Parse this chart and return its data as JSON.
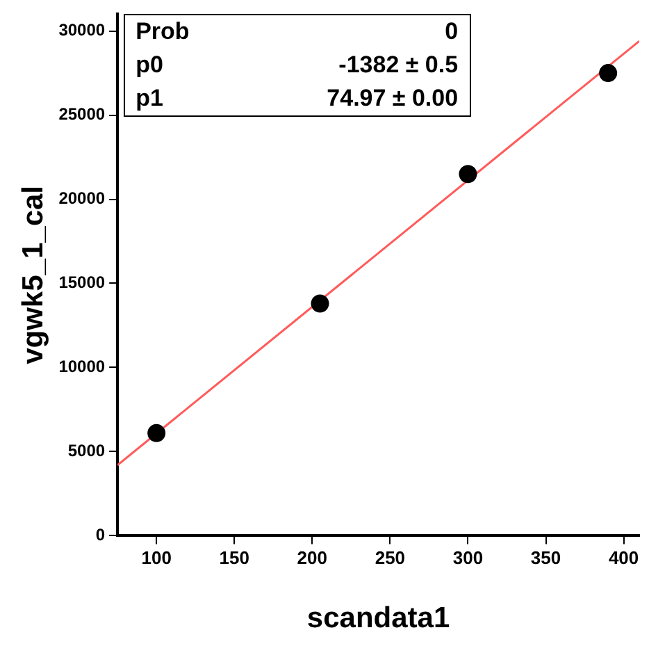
{
  "chart_data": {
    "type": "scatter",
    "xlabel": "scandata1",
    "ylabel": "vgwk5_1_cal",
    "xlim": [
      75,
      410
    ],
    "xticks": [
      100,
      150,
      200,
      250,
      300,
      350,
      400
    ],
    "ylim": [
      0,
      31000
    ],
    "yticks": [
      0,
      5000,
      10000,
      15000,
      20000,
      25000,
      30000
    ],
    "grid": false,
    "series": [
      {
        "color": "#000000",
        "marker": "circle",
        "x": [
          100,
          205,
          300,
          390
        ],
        "values": [
          6100,
          13800,
          21500,
          27500
        ]
      },
      {
        "type": "line",
        "color": "#ff5a5a",
        "x": [
          75,
          410
        ],
        "values": [
          4200,
          29400
        ]
      }
    ],
    "annotations": [
      "Prob",
      "0",
      "p0",
      "-1382 ± 0.5",
      "p1",
      "74.97 ± 0.00"
    ]
  }
}
